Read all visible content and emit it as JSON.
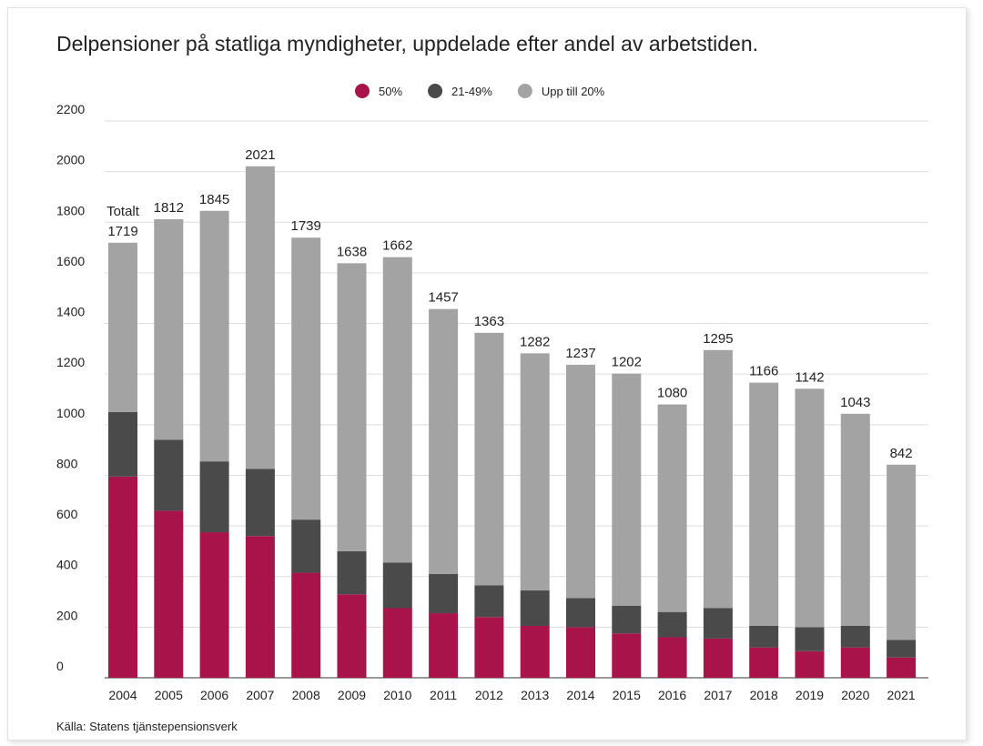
{
  "chart_data": {
    "type": "stacked_bar",
    "title": "Delpensioner på statliga myndigheter, uppdelade efter andel av arbetstiden.",
    "source": "Källa: Statens tjänstepensionsverk",
    "total_label": "Totalt",
    "categories": [
      "2004",
      "2005",
      "2006",
      "2007",
      "2008",
      "2009",
      "2010",
      "2011",
      "2012",
      "2013",
      "2014",
      "2015",
      "2016",
      "2017",
      "2018",
      "2019",
      "2020",
      "2021"
    ],
    "series": [
      {
        "name": "50%",
        "color": "#a8134a",
        "values": [
          795,
          660,
          575,
          560,
          415,
          330,
          275,
          255,
          240,
          205,
          200,
          175,
          160,
          155,
          120,
          105,
          120,
          80
        ]
      },
      {
        "name": "21-49%",
        "color": "#4a4a4a",
        "values": [
          255,
          280,
          280,
          265,
          210,
          170,
          180,
          155,
          125,
          140,
          115,
          110,
          100,
          120,
          85,
          95,
          85,
          70
        ]
      },
      {
        "name": "Upp till 20%",
        "color": "#a3a3a3",
        "values": [
          669,
          872,
          990,
          1196,
          1114,
          1138,
          1207,
          1047,
          998,
          937,
          922,
          917,
          820,
          1020,
          961,
          942,
          838,
          692
        ]
      }
    ],
    "totals": [
      1719,
      1812,
      1845,
      2021,
      1739,
      1638,
      1662,
      1457,
      1363,
      1282,
      1237,
      1202,
      1080,
      1295,
      1166,
      1142,
      1043,
      842
    ],
    "ylim": [
      0,
      2200
    ],
    "yticks": [
      0,
      200,
      400,
      600,
      800,
      1000,
      1200,
      1400,
      1600,
      1800,
      2000,
      2200
    ],
    "grid": true
  }
}
